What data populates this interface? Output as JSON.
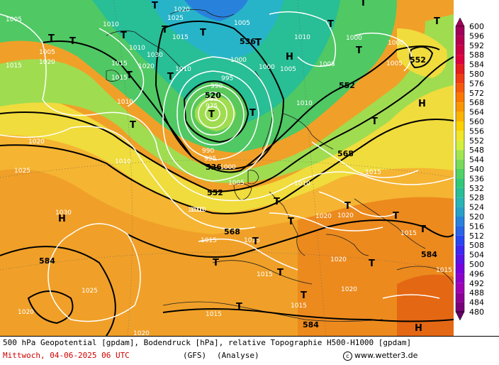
{
  "map": {
    "height_labels": [
      "520",
      "536",
      "536",
      "552",
      "552",
      "552",
      "568",
      "568",
      "584",
      "584",
      "584"
    ],
    "pressure_labels": [
      "1005",
      "1010",
      "1020",
      "1025",
      "1015",
      "1020",
      "1010",
      "1005",
      "1015",
      "1030",
      "1020",
      "1010",
      "1015",
      "1015",
      "1010",
      "1010",
      "1005",
      "1000",
      "1000",
      "1005",
      "1005",
      "1010",
      "1005",
      "1000",
      "1000",
      "995",
      "990",
      "985",
      "975",
      "990",
      "995",
      "1000",
      "1005",
      "1010",
      "1010",
      "1020",
      "1025",
      "1030",
      "1025",
      "1020",
      "1015",
      "1010",
      "1015",
      "1015",
      "1015",
      "1020",
      "1020",
      "1015",
      "1020",
      "1015",
      "1020",
      "1015",
      "1015",
      "1020",
      "1010"
    ],
    "high_symbol": "H",
    "low_symbol": "T",
    "low_center_label": "T"
  },
  "legend": {
    "values": [
      "600",
      "596",
      "592",
      "588",
      "584",
      "580",
      "576",
      "572",
      "568",
      "564",
      "560",
      "556",
      "552",
      "548",
      "544",
      "540",
      "536",
      "532",
      "528",
      "524",
      "520",
      "516",
      "512",
      "508",
      "504",
      "500",
      "496",
      "492",
      "488",
      "484",
      "480"
    ],
    "colors": [
      "#a0005a",
      "#b40050",
      "#c80046",
      "#dc003c",
      "#e61e1e",
      "#f03c14",
      "#f55a0a",
      "#fa7800",
      "#fa9600",
      "#fab400",
      "#fad200",
      "#f0e628",
      "#d2f03c",
      "#a0e650",
      "#78dc5a",
      "#50d264",
      "#32c878",
      "#28be96",
      "#28b4b4",
      "#28a0c8",
      "#2882dc",
      "#2864e6",
      "#2846f0",
      "#3c28f0",
      "#5a14e6",
      "#7800dc",
      "#8c00c8",
      "#a000b4",
      "#8c0096",
      "#780078",
      "#640064"
    ]
  },
  "footer": {
    "description": "500 hPa Geopotential [gpdam], Bodendruck [hPa], relative Topographie H500-H1000 [gpdam]",
    "date": "Mittwoch, 04-06-2025  06 UTC",
    "model": "(GFS)",
    "analysis": "(Analyse)",
    "copyright": "www.wetter3.de"
  }
}
